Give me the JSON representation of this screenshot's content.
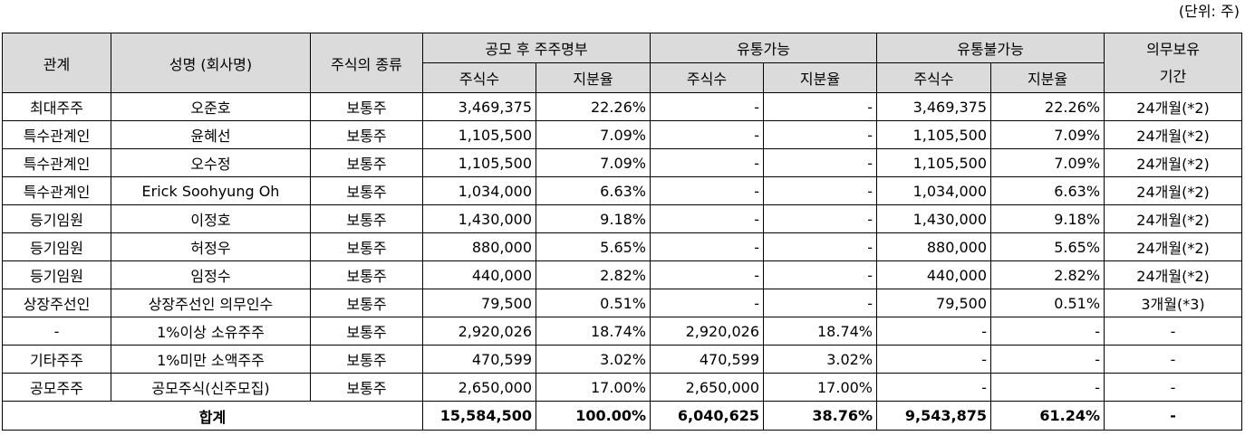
{
  "unit_note": "(단위: 주)",
  "headers": {
    "relation": "관계",
    "name": "성명 (회사명)",
    "stock_type": "주식의 종류",
    "post_ipo": "공모 후 주주명부",
    "tradable": "유통가능",
    "non_tradable": "유통불가능",
    "lockup": "의무보유\n기간",
    "shares": "주식수",
    "ratio": "지분율"
  },
  "rows": [
    {
      "relation": "최대주주",
      "name": "오준호",
      "type": "보통주",
      "post_shares": "3,469,375",
      "post_ratio": "22.26%",
      "trad_shares": "-",
      "trad_ratio": "-",
      "non_shares": "3,469,375",
      "non_ratio": "22.26%",
      "lockup": "24개월(*2)"
    },
    {
      "relation": "특수관계인",
      "name": "윤혜선",
      "type": "보통주",
      "post_shares": "1,105,500",
      "post_ratio": "7.09%",
      "trad_shares": "-",
      "trad_ratio": "-",
      "non_shares": "1,105,500",
      "non_ratio": "7.09%",
      "lockup": "24개월(*2)"
    },
    {
      "relation": "특수관계인",
      "name": "오수정",
      "type": "보통주",
      "post_shares": "1,105,500",
      "post_ratio": "7.09%",
      "trad_shares": "-",
      "trad_ratio": "-",
      "non_shares": "1,105,500",
      "non_ratio": "7.09%",
      "lockup": "24개월(*2)"
    },
    {
      "relation": "특수관계인",
      "name": "Erick Soohyung Oh",
      "type": "보통주",
      "post_shares": "1,034,000",
      "post_ratio": "6.63%",
      "trad_shares": "-",
      "trad_ratio": "-",
      "non_shares": "1,034,000",
      "non_ratio": "6.63%",
      "lockup": "24개월(*2)"
    },
    {
      "relation": "등기임원",
      "name": "이정호",
      "type": "보통주",
      "post_shares": "1,430,000",
      "post_ratio": "9.18%",
      "trad_shares": "-",
      "trad_ratio": "-",
      "non_shares": "1,430,000",
      "non_ratio": "9.18%",
      "lockup": "24개월(*2)"
    },
    {
      "relation": "등기임원",
      "name": "허정우",
      "type": "보통주",
      "post_shares": "880,000",
      "post_ratio": "5.65%",
      "trad_shares": "-",
      "trad_ratio": "-",
      "non_shares": "880,000",
      "non_ratio": "5.65%",
      "lockup": "24개월(*2)"
    },
    {
      "relation": "등기임원",
      "name": "임정수",
      "type": "보통주",
      "post_shares": "440,000",
      "post_ratio": "2.82%",
      "trad_shares": "-",
      "trad_ratio": "-",
      "non_shares": "440,000",
      "non_ratio": "2.82%",
      "lockup": "24개월(*2)"
    },
    {
      "relation": "상장주선인",
      "name": "상장주선인 의무인수",
      "type": "보통주",
      "post_shares": "79,500",
      "post_ratio": "0.51%",
      "trad_shares": "-",
      "trad_ratio": "-",
      "non_shares": "79,500",
      "non_ratio": "0.51%",
      "lockup": "3개월(*3)"
    },
    {
      "relation": "-",
      "name": "1%이상 소유주주",
      "type": "보통주",
      "post_shares": "2,920,026",
      "post_ratio": "18.74%",
      "trad_shares": "2,920,026",
      "trad_ratio": "18.74%",
      "non_shares": "-",
      "non_ratio": "-",
      "lockup": "-"
    },
    {
      "relation": "기타주주",
      "name": "1%미만 소액주주",
      "type": "보통주",
      "post_shares": "470,599",
      "post_ratio": "3.02%",
      "trad_shares": "470,599",
      "trad_ratio": "3.02%",
      "non_shares": "-",
      "non_ratio": "-",
      "lockup": "-"
    },
    {
      "relation": "공모주주",
      "name": "공모주식(신주모집)",
      "type": "보통주",
      "post_shares": "2,650,000",
      "post_ratio": "17.00%",
      "trad_shares": "2,650,000",
      "trad_ratio": "17.00%",
      "non_shares": "-",
      "non_ratio": "-",
      "lockup": "-"
    }
  ],
  "total": {
    "label": "합계",
    "post_shares": "15,584,500",
    "post_ratio": "100.00%",
    "trad_shares": "6,040,625",
    "trad_ratio": "38.76%",
    "non_shares": "9,543,875",
    "non_ratio": "61.24%",
    "lockup": "-"
  }
}
